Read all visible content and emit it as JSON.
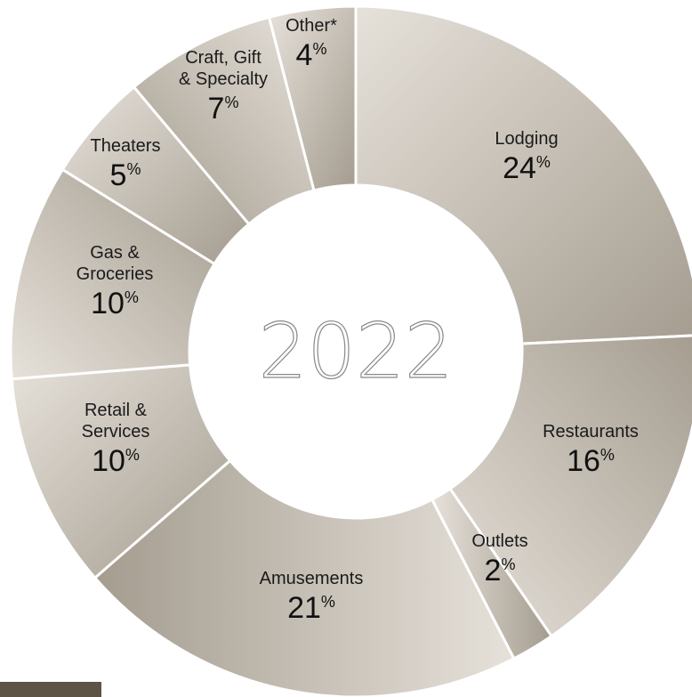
{
  "chart_data": {
    "type": "pie",
    "donut": true,
    "center_label": "2022",
    "percent_sign": "%",
    "slices": [
      {
        "label_lines": [
          "Lodging"
        ],
        "value": 24,
        "value_text": "24"
      },
      {
        "label_lines": [
          "Restaurants"
        ],
        "value": 16,
        "value_text": "16"
      },
      {
        "label_lines": [
          "Outlets"
        ],
        "value": 2,
        "value_text": "2"
      },
      {
        "label_lines": [
          "Amusements"
        ],
        "value": 21,
        "value_text": "21"
      },
      {
        "label_lines": [
          "Retail &",
          "Services"
        ],
        "value": 10,
        "value_text": "10"
      },
      {
        "label_lines": [
          "Gas &",
          "Groceries"
        ],
        "value": 10,
        "value_text": "10"
      },
      {
        "label_lines": [
          "Theaters"
        ],
        "value": 5,
        "value_text": "5"
      },
      {
        "label_lines": [
          "Craft, Gift",
          "& Specialty"
        ],
        "value": 7,
        "value_text": "7"
      },
      {
        "label_lines": [
          "Other*"
        ],
        "value": 4,
        "value_text": "4"
      }
    ],
    "start_angle_deg": 0,
    "direction": "clockwise",
    "colors": {
      "light": "#e6e1da",
      "dark": "#a49c8f",
      "accent_bar": "#5e5446"
    }
  }
}
